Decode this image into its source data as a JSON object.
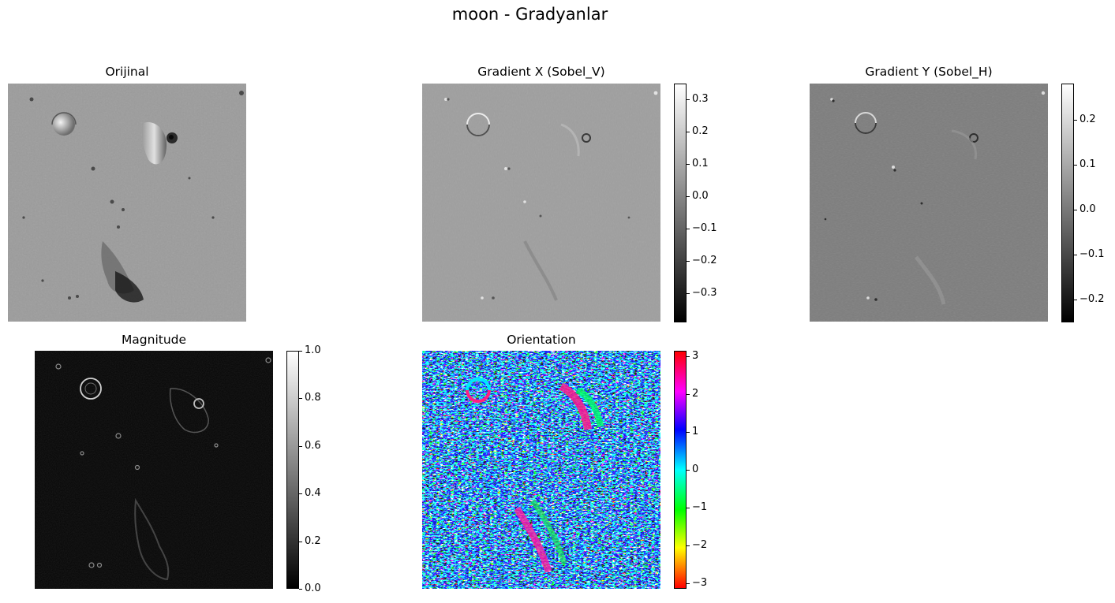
{
  "figure": {
    "suptitle": "moon - Gradyanlar"
  },
  "colors": {
    "gray_low": "#000000",
    "gray_high": "#ffffff",
    "hsv": [
      "#ff0000",
      "#ffff00",
      "#00ff00",
      "#00ffff",
      "#0000ff",
      "#ff00ff",
      "#ff0000"
    ]
  },
  "chart_data": [
    {
      "type": "heatmap",
      "title": "Orijinal",
      "colormap": "gray",
      "colorbar": false,
      "axes": "off"
    },
    {
      "type": "heatmap",
      "title": "Gradient X (Sobel_V)",
      "colormap": "gray",
      "colorbar": true,
      "axes": "off",
      "clim": [
        -0.39,
        0.35
      ],
      "colorbar_ticks": [
        {
          "value": 0.3,
          "label": "0.3"
        },
        {
          "value": 0.2,
          "label": "0.2"
        },
        {
          "value": 0.1,
          "label": "0.1"
        },
        {
          "value": 0.0,
          "label": "0.0"
        },
        {
          "value": -0.1,
          "label": "−0.1"
        },
        {
          "value": -0.2,
          "label": "−0.2"
        },
        {
          "value": -0.3,
          "label": "−0.3"
        }
      ]
    },
    {
      "type": "heatmap",
      "title": "Gradient Y (Sobel_H)",
      "colormap": "gray",
      "colorbar": true,
      "axes": "off",
      "clim": [
        -0.25,
        0.28
      ],
      "colorbar_ticks": [
        {
          "value": 0.2,
          "label": "0.2"
        },
        {
          "value": 0.1,
          "label": "0.1"
        },
        {
          "value": 0.0,
          "label": "0.0"
        },
        {
          "value": -0.1,
          "label": "−0.1"
        },
        {
          "value": -0.2,
          "label": "−0.2"
        }
      ]
    },
    {
      "type": "heatmap",
      "title": "Magnitude",
      "colormap": "gray",
      "colorbar": true,
      "axes": "off",
      "clim": [
        0.0,
        1.0
      ],
      "colorbar_ticks": [
        {
          "value": 1.0,
          "label": "1.0"
        },
        {
          "value": 0.8,
          "label": "0.8"
        },
        {
          "value": 0.6,
          "label": "0.6"
        },
        {
          "value": 0.4,
          "label": "0.4"
        },
        {
          "value": 0.2,
          "label": "0.2"
        },
        {
          "value": 0.0,
          "label": "0.0"
        }
      ]
    },
    {
      "type": "heatmap",
      "title": "Orientation",
      "colormap": "hsv",
      "colorbar": true,
      "axes": "off",
      "clim": [
        -3.14,
        3.14
      ],
      "colorbar_ticks": [
        {
          "value": 3,
          "label": "3"
        },
        {
          "value": 2,
          "label": "2"
        },
        {
          "value": 1,
          "label": "1"
        },
        {
          "value": 0,
          "label": "0"
        },
        {
          "value": -1,
          "label": "−1"
        },
        {
          "value": -2,
          "label": "−2"
        },
        {
          "value": -3,
          "label": "−3"
        }
      ]
    }
  ]
}
